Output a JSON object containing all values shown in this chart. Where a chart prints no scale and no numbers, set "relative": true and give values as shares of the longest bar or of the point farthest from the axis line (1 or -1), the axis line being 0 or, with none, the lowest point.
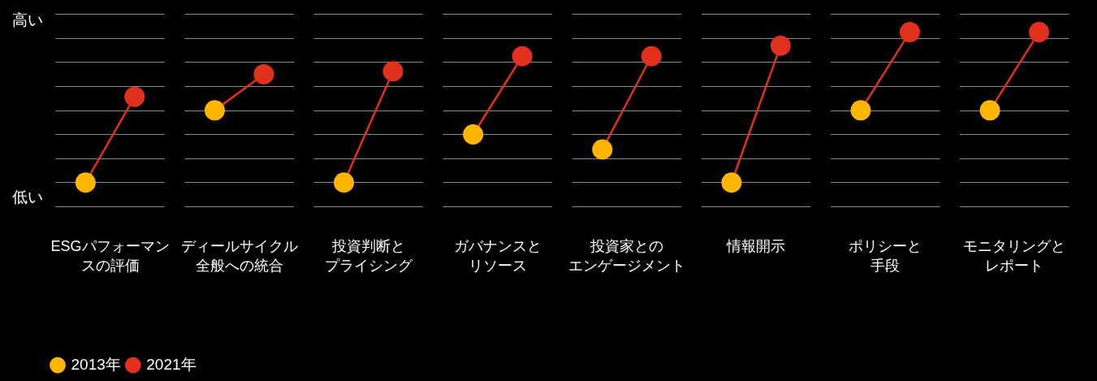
{
  "chart_data": {
    "type": "scatter",
    "relative": true,
    "grid": "y",
    "marker": "circle",
    "legend": "bottom left",
    "categories": [
      "ESGパフォーマンスの評価",
      "ディールサイクル全般への統合",
      "投資判断とプライシング",
      "ガバナンスとリソース",
      "投資家とのエンゲージメント",
      "情報開示",
      "ポリシーと手段",
      "モニタリングとレポート"
    ],
    "series": [
      {
        "name": "2013年",
        "color": "#ffb600",
        "values": [
          0,
          0.48,
          0,
          0.32,
          0.22,
          0,
          0.48,
          0.48
        ]
      },
      {
        "name": "2021年",
        "color": "#e0301e",
        "values": [
          0.57,
          0.72,
          0.74,
          0.84,
          0.84,
          0.91,
          1,
          1
        ]
      }
    ],
    "annotations": [
      "高い",
      "低い"
    ]
  }
}
